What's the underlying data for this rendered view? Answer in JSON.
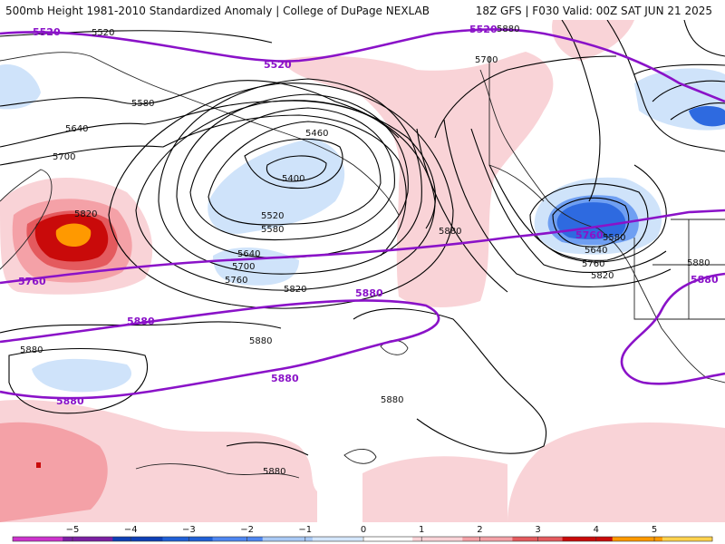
{
  "header": {
    "title_left": "500mb Height 1981-2010 Standardized Anomaly | College of DuPage NEXLAB",
    "title_right": "18Z GFS | F030 Valid: 00Z SAT JUN 21 2025"
  },
  "contour_labels": [
    "5520",
    "5580",
    "5640",
    "5700",
    "5820",
    "5460",
    "5400",
    "5520",
    "5580",
    "5640",
    "5700",
    "5760",
    "5820",
    "5880",
    "5880",
    "5880",
    "5880",
    "5880",
    "5880",
    "5700",
    "5640",
    "5580",
    "5820",
    "5760",
    "5880"
  ],
  "purple_labels": [
    "5520",
    "5520",
    "5520",
    "5760",
    "5760",
    "5880",
    "5880",
    "5880",
    "5880"
  ],
  "colorbar": {
    "ticks": [
      "−5",
      "−4",
      "−3",
      "−2",
      "−1",
      "0",
      "1",
      "2",
      "3",
      "4",
      "5"
    ],
    "colors": [
      "#cc33cc",
      "#7b1fa2",
      "#0d3fb5",
      "#1f5fd6",
      "#4d86f0",
      "#a9c9f5",
      "#d4e6fb",
      "#ffffff",
      "#f9d3d7",
      "#f4a1a7",
      "#e45a5e",
      "#c90a0a",
      "#ff9900",
      "#ffd24d"
    ]
  },
  "colors": {
    "purple": "#8a12c8",
    "anom_pos_light": "#f9d3d7",
    "anom_pos_mid": "#f4a1a7",
    "anom_pos_strong": "#e45a5e",
    "anom_pos_dark": "#c90a0a",
    "anom_pos_max": "#ff9900",
    "anom_neg_light": "#cfe3fa",
    "anom_neg_mid": "#6f9ff2",
    "anom_neg_strong": "#2e6ae0"
  }
}
